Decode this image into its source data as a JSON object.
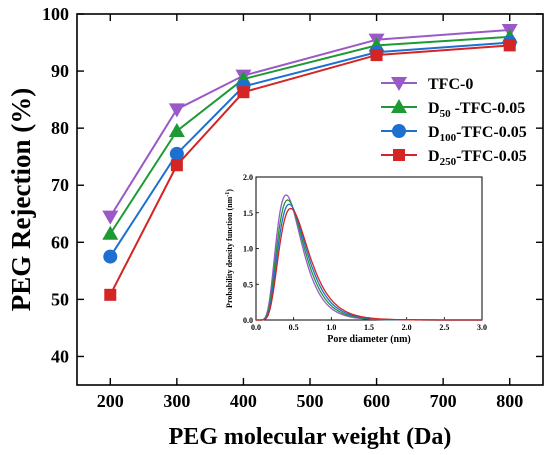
{
  "chart_data": {
    "type": "line",
    "xlabel": "PEG molecular weight (Da)",
    "ylabel": "PEG Rejection (%)",
    "xlim": [
      150,
      850
    ],
    "ylim": [
      35,
      100
    ],
    "xticks": [
      200,
      300,
      400,
      500,
      600,
      700,
      800
    ],
    "yticks": [
      40,
      50,
      60,
      70,
      80,
      90,
      100
    ],
    "x": [
      200,
      300,
      400,
      600,
      800
    ],
    "grid": false,
    "legend_position": "top-right",
    "series": [
      {
        "name": "TFC-0",
        "legend": {
          "base": "TFC-0",
          "sub": "",
          "rest": ""
        },
        "marker": "triangle-down",
        "color": "#9b59c8",
        "values": [
          64.5,
          83.3,
          89.2,
          95.5,
          97.2
        ]
      },
      {
        "name": "D50-TFC-0.05",
        "legend": {
          "base": "D",
          "sub": "50",
          "rest": " -TFC-0.05"
        },
        "marker": "triangle-up",
        "color": "#1e9a35",
        "values": [
          61.5,
          79.5,
          88.6,
          94.5,
          96.0
        ]
      },
      {
        "name": "D100-TFC-0.05",
        "legend": {
          "base": "D",
          "sub": "100",
          "rest": "-TFC-0.05"
        },
        "marker": "circle",
        "color": "#1f6fd1",
        "values": [
          57.5,
          75.5,
          87.3,
          93.3,
          95.0
        ]
      },
      {
        "name": "D250-TFC-0.05",
        "legend": {
          "base": "D",
          "sub": "250",
          "rest": "-TFC-0.05"
        },
        "marker": "square",
        "color": "#d42424",
        "values": [
          50.8,
          73.5,
          86.3,
          92.8,
          94.5
        ]
      }
    ],
    "inset": {
      "type": "line",
      "xlabel": "Pore diameter (nm)",
      "ylabel": "Probability density function (nm",
      "ylabel_sup": "-1",
      "ylabel_close": ")",
      "xlim": [
        0,
        3.0
      ],
      "ylim": [
        0,
        2.0
      ],
      "xticks": [
        "0.0",
        "0.5",
        "1.0",
        "1.5",
        "2.0",
        "2.5",
        "3.0"
      ],
      "yticks": [
        "0.0",
        "0.5",
        "1.0",
        "1.5",
        "2.0"
      ],
      "curves": [
        {
          "name": "TFC-0",
          "color": "#9b59c8",
          "peak_x": 0.4,
          "peak_y": 1.75
        },
        {
          "name": "D50-TFC-0.05",
          "color": "#1e9a35",
          "peak_x": 0.42,
          "peak_y": 1.68
        },
        {
          "name": "D100-TFC-0.05",
          "color": "#1f6fd1",
          "peak_x": 0.44,
          "peak_y": 1.62
        },
        {
          "name": "D250-TFC-0.05",
          "color": "#d42424",
          "peak_x": 0.46,
          "peak_y": 1.56
        }
      ]
    }
  }
}
